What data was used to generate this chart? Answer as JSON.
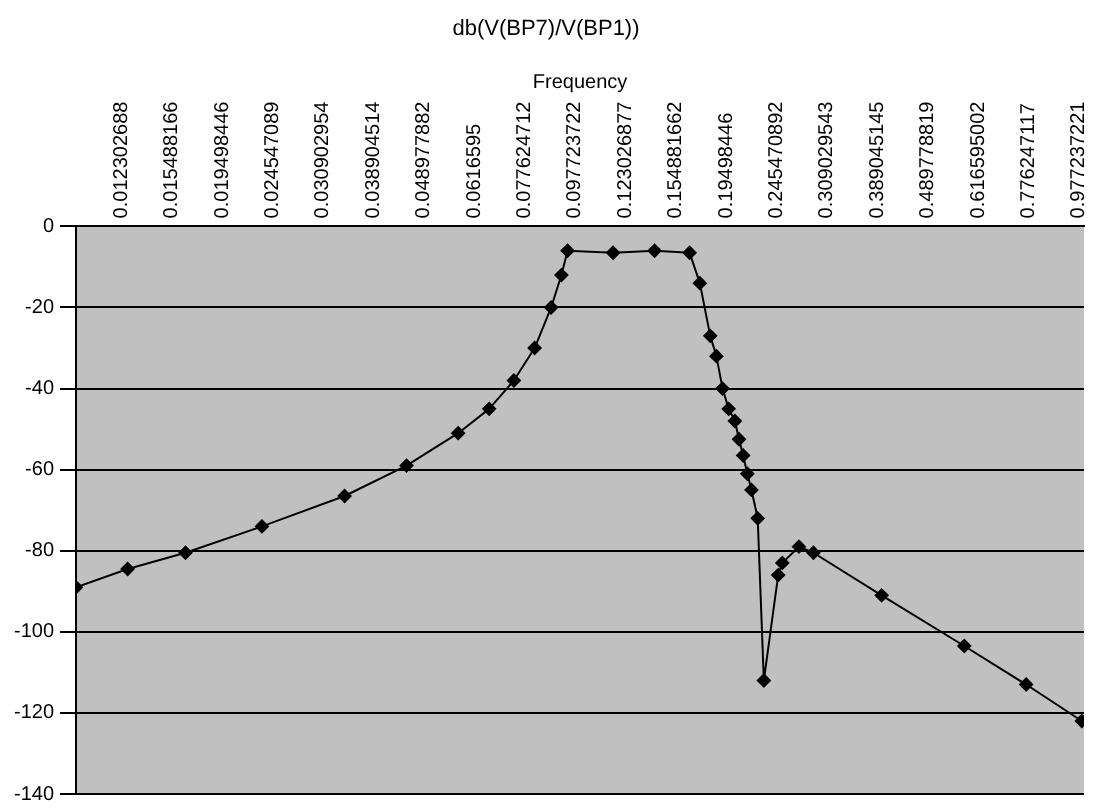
{
  "chart_data": {
    "type": "line",
    "title": "db(V(BP7)/V(BP1))",
    "xlabel": "Frequency",
    "x": [
      0.01,
      0.01266,
      0.01649,
      0.02338,
      0.03411,
      0.04527,
      0.05731,
      0.06603,
      0.07392,
      0.08128,
      0.08764,
      0.09185,
      0.09448,
      0.1163,
      0.1406,
      0.165,
      0.1729,
      0.1813,
      0.1865,
      0.1918,
      0.1972,
      0.2029,
      0.2068,
      0.2107,
      0.2148,
      0.2189,
      0.2252,
      0.2316,
      0.2473,
      0.252,
      0.2719,
      0.2905,
      0.3967,
      0.5787,
      0.7678,
      0.99
    ],
    "series": [
      {
        "color": "#000000",
        "values": [
          -89,
          -84.5,
          -80.5,
          -74,
          -66.5,
          -59,
          -51,
          -45,
          -38,
          -30,
          -20,
          -12,
          -6,
          -6.5,
          -6,
          -6.5,
          -14,
          -27,
          -32,
          -40,
          -45,
          -48,
          -52.5,
          -56.5,
          -61,
          -65,
          -72,
          -112,
          -86,
          -83,
          -79,
          -80.5,
          -91,
          -103.5,
          -113,
          -122
        ]
      }
    ],
    "log": "x",
    "xlim": [
      0.01,
      1
    ],
    "xticks": [
      0.012302688,
      0.015488166,
      0.019498446,
      0.024547089,
      0.030902954,
      0.038904514,
      0.048977882,
      0.0616595,
      0.077624712,
      0.097723722,
      0.123026877,
      0.154881662,
      0.19498446,
      0.245470892,
      0.309029543,
      0.389045145,
      0.489778819,
      0.616595002,
      0.776247117,
      0.977237221
    ],
    "ylim": [
      -140,
      0
    ],
    "yticks": [
      -140,
      -120,
      -100,
      -80,
      -60,
      -40,
      -20,
      0
    ],
    "grid": "y",
    "legend": false,
    "marker": "diamond",
    "line_style": "solid"
  }
}
